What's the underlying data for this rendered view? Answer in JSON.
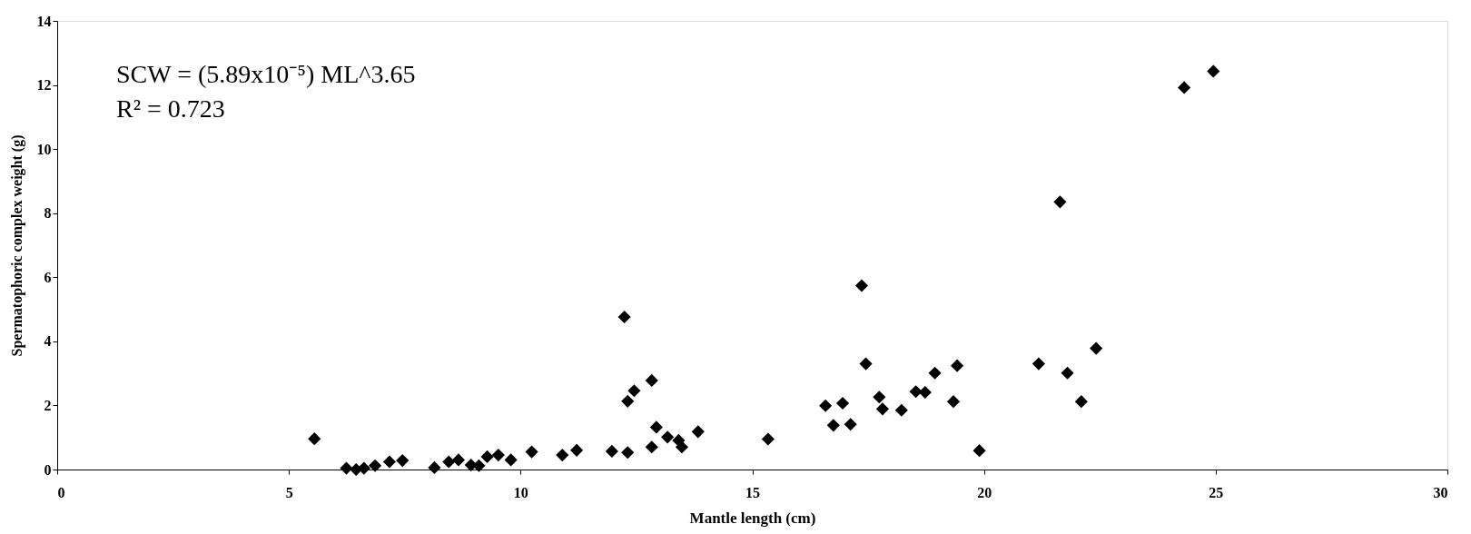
{
  "chart_data": {
    "type": "scatter",
    "xlabel": "Mantle length (cm)",
    "ylabel": "Spermatophoric complex weight (g)",
    "annotations": [
      "SCW = (5.89x10⁻⁵) ML^3.65",
      "R² = 0.723"
    ],
    "x": [
      5.55,
      6.24,
      6.45,
      6.62,
      6.86,
      7.17,
      7.45,
      8.14,
      8.45,
      8.66,
      8.93,
      9.1,
      9.28,
      9.52,
      9.79,
      10.24,
      10.9,
      11.21,
      11.97,
      12.24,
      12.31,
      12.31,
      12.45,
      12.83,
      12.83,
      12.93,
      13.17,
      13.41,
      13.48,
      13.83,
      15.34,
      16.58,
      16.75,
      16.95,
      17.12,
      17.36,
      17.45,
      17.74,
      17.81,
      18.22,
      18.53,
      18.73,
      18.94,
      19.34,
      19.42,
      19.9,
      21.18,
      21.64,
      21.8,
      22.1,
      22.42,
      24.32,
      24.95
    ],
    "series": [
      {
        "color": "#000000",
        "values": [
          0.96,
          0.04,
          0.0,
          0.04,
          0.12,
          0.24,
          0.28,
          0.06,
          0.24,
          0.3,
          0.14,
          0.12,
          0.4,
          0.45,
          0.3,
          0.55,
          0.45,
          0.6,
          0.57,
          4.76,
          2.13,
          0.53,
          2.46,
          2.78,
          0.7,
          1.32,
          1.01,
          0.91,
          0.7,
          1.18,
          0.95,
          1.99,
          1.38,
          2.07,
          1.41,
          5.74,
          3.3,
          2.26,
          1.89,
          1.85,
          2.43,
          2.41,
          3.01,
          2.12,
          3.24,
          0.59,
          3.3,
          8.35,
          3.01,
          2.12,
          3.78,
          11.92,
          12.43
        ]
      }
    ],
    "xlim": [
      0,
      30
    ],
    "xticks": [
      0,
      5,
      10,
      15,
      20,
      25,
      30
    ],
    "ylim": [
      0,
      14
    ],
    "yticks": [
      0,
      2,
      4,
      6,
      8,
      10,
      12,
      14
    ],
    "marker": "diamond",
    "grid": false,
    "legend": false
  }
}
